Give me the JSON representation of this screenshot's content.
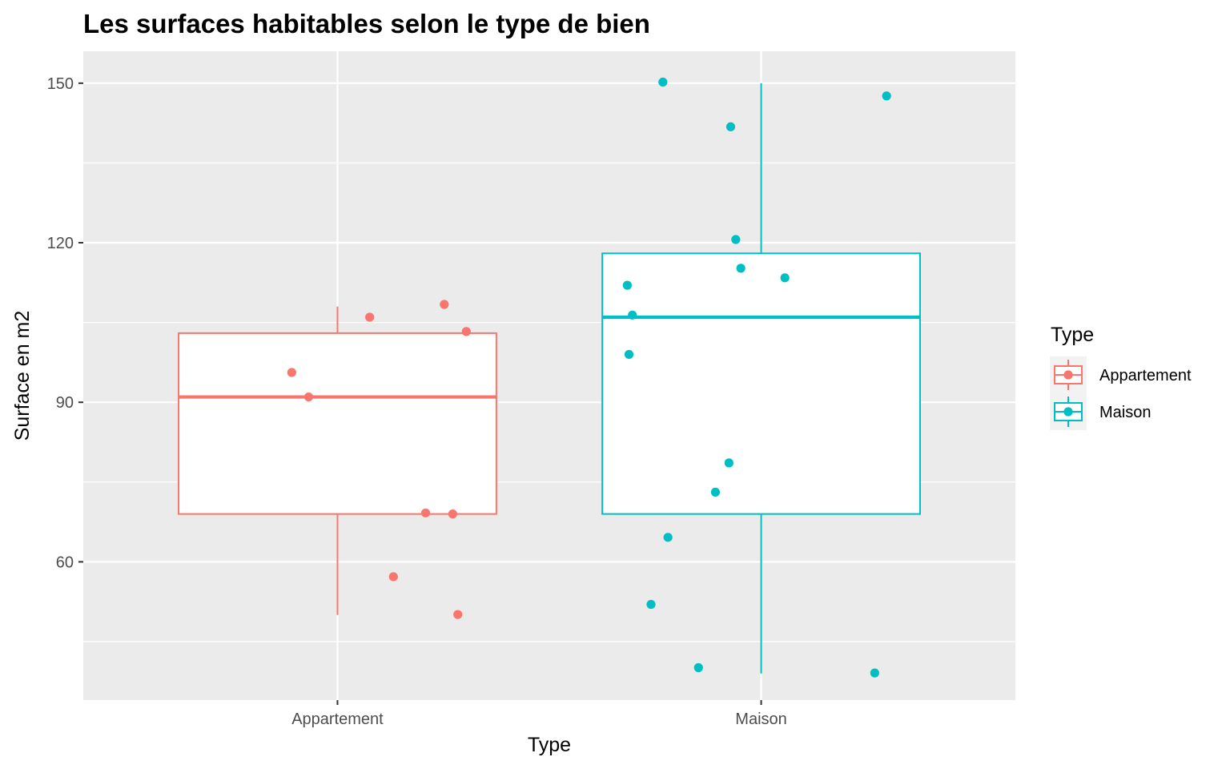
{
  "chart_data": {
    "type": "box",
    "title": "Les surfaces habitables selon le type de bien",
    "xlabel": "Type",
    "ylabel": "Surface en m2",
    "ylim": [
      34,
      156
    ],
    "yticks": [
      60,
      90,
      120,
      150
    ],
    "categories": [
      "Appartement",
      "Maison"
    ],
    "grid": true,
    "legend": {
      "title": "Type",
      "position": "right"
    },
    "series": [
      {
        "name": "Appartement",
        "color": "#F8766D",
        "box": {
          "min": 50,
          "q1": 69,
          "median": 91,
          "q3": 103,
          "max": 108
        },
        "points": [
          {
            "jitter": -0.27,
            "y": 95.6
          },
          {
            "jitter": -0.17,
            "y": 91.0
          },
          {
            "jitter": 0.19,
            "y": 106.0
          },
          {
            "jitter": 0.33,
            "y": 57.2
          },
          {
            "jitter": 0.52,
            "y": 69.2
          },
          {
            "jitter": 0.63,
            "y": 108.4
          },
          {
            "jitter": 0.68,
            "y": 69.0
          },
          {
            "jitter": 0.71,
            "y": 50.1
          },
          {
            "jitter": 0.76,
            "y": 103.3
          }
        ]
      },
      {
        "name": "Maison",
        "color": "#00BFC4",
        "box": {
          "min": 39,
          "q1": 69,
          "median": 106,
          "q3": 118,
          "max": 150
        },
        "points": [
          {
            "jitter": -0.79,
            "y": 112.0
          },
          {
            "jitter": -0.78,
            "y": 99.0
          },
          {
            "jitter": -0.76,
            "y": 106.4
          },
          {
            "jitter": -0.65,
            "y": 52.0
          },
          {
            "jitter": -0.58,
            "y": 150.2
          },
          {
            "jitter": -0.55,
            "y": 64.6
          },
          {
            "jitter": -0.37,
            "y": 40.1
          },
          {
            "jitter": -0.27,
            "y": 73.1
          },
          {
            "jitter": -0.19,
            "y": 78.6
          },
          {
            "jitter": -0.18,
            "y": 141.8
          },
          {
            "jitter": -0.15,
            "y": 120.6
          },
          {
            "jitter": -0.12,
            "y": 115.2
          },
          {
            "jitter": 0.14,
            "y": 113.4
          },
          {
            "jitter": 0.67,
            "y": 39.1
          },
          {
            "jitter": 0.74,
            "y": 147.6
          }
        ]
      }
    ]
  }
}
